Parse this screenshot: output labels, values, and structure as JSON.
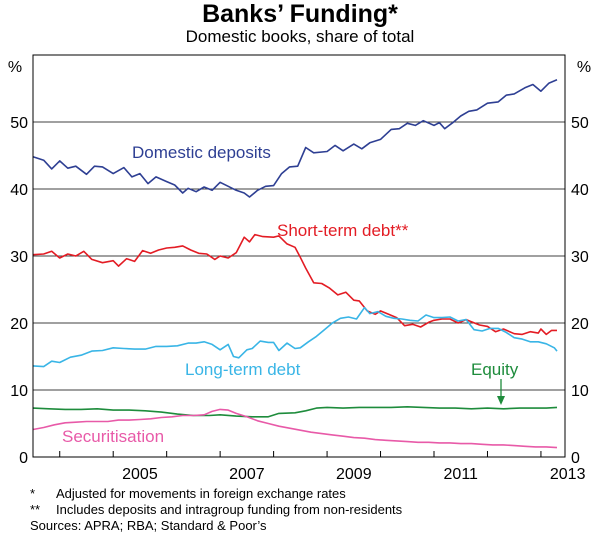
{
  "title": "Banks’ Funding*",
  "subtitle": "Domestic books, share of total",
  "notes": [
    {
      "mark": "*",
      "text": "Adjusted for movements in foreign exchange rates"
    },
    {
      "mark": "**",
      "text": "Includes deposits and intragroup funding from non-residents"
    }
  ],
  "sources": "Sources: APRA; RBA; Standard & Poor’s",
  "chart_data": {
    "type": "line",
    "title": "Banks’ Funding*",
    "subtitle": "Domestic books, share of total",
    "ylabel_left": "%",
    "ylabel_right": "%",
    "ylim": [
      0,
      60
    ],
    "xlim": [
      2003.5,
      2013.45
    ],
    "yticks": [
      0,
      10,
      20,
      30,
      40,
      50
    ],
    "xticks": [
      2005,
      2007,
      2009,
      2011,
      2013
    ],
    "xtick_labels": [
      "2005",
      "2007",
      "2009",
      "2011",
      "2013"
    ],
    "grid": "horizontal",
    "series": [
      {
        "name": "Domestic deposits",
        "label": "Domestic deposits",
        "color": "#2e3f93",
        "points": [
          [
            2003.5,
            44.8
          ],
          [
            2003.7,
            44.3
          ],
          [
            2003.85,
            43.0
          ],
          [
            2004.0,
            44.2
          ],
          [
            2004.15,
            43.1
          ],
          [
            2004.3,
            43.4
          ],
          [
            2004.5,
            42.2
          ],
          [
            2004.65,
            43.4
          ],
          [
            2004.8,
            43.3
          ],
          [
            2005.0,
            42.3
          ],
          [
            2005.2,
            43.2
          ],
          [
            2005.35,
            41.8
          ],
          [
            2005.5,
            42.3
          ],
          [
            2005.65,
            40.8
          ],
          [
            2005.8,
            41.8
          ],
          [
            2006.0,
            41.1
          ],
          [
            2006.15,
            40.6
          ],
          [
            2006.3,
            39.4
          ],
          [
            2006.4,
            40.1
          ],
          [
            2006.55,
            39.6
          ],
          [
            2006.7,
            40.3
          ],
          [
            2006.85,
            39.8
          ],
          [
            2007.0,
            41.0
          ],
          [
            2007.15,
            40.4
          ],
          [
            2007.3,
            39.8
          ],
          [
            2007.45,
            39.4
          ],
          [
            2007.55,
            38.8
          ],
          [
            2007.7,
            39.8
          ],
          [
            2007.85,
            40.4
          ],
          [
            2008.0,
            40.5
          ],
          [
            2008.15,
            42.3
          ],
          [
            2008.3,
            43.3
          ],
          [
            2008.45,
            43.4
          ],
          [
            2008.6,
            46.2
          ],
          [
            2008.75,
            45.4
          ],
          [
            2009.0,
            45.6
          ],
          [
            2009.15,
            46.5
          ],
          [
            2009.3,
            45.7
          ],
          [
            2009.5,
            46.7
          ],
          [
            2009.65,
            46.0
          ],
          [
            2009.8,
            46.9
          ],
          [
            2010.0,
            47.4
          ],
          [
            2010.2,
            48.9
          ],
          [
            2010.35,
            49.0
          ],
          [
            2010.5,
            49.8
          ],
          [
            2010.65,
            49.5
          ],
          [
            2010.8,
            50.2
          ],
          [
            2011.0,
            49.5
          ],
          [
            2011.1,
            49.9
          ],
          [
            2011.2,
            49.0
          ],
          [
            2011.35,
            49.9
          ],
          [
            2011.5,
            50.9
          ],
          [
            2011.65,
            51.6
          ],
          [
            2011.8,
            51.8
          ],
          [
            2012.0,
            52.8
          ],
          [
            2012.2,
            53.0
          ],
          [
            2012.35,
            54.0
          ],
          [
            2012.5,
            54.2
          ],
          [
            2012.7,
            55.1
          ],
          [
            2012.85,
            55.6
          ],
          [
            2013.0,
            54.6
          ],
          [
            2013.15,
            55.8
          ],
          [
            2013.3,
            56.3
          ]
        ]
      },
      {
        "name": "Short-term debt**",
        "label": "Short-term debt**",
        "color": "#e31c24",
        "points": [
          [
            2003.5,
            30.2
          ],
          [
            2003.7,
            30.3
          ],
          [
            2003.85,
            30.7
          ],
          [
            2004.0,
            29.7
          ],
          [
            2004.15,
            30.3
          ],
          [
            2004.3,
            30.0
          ],
          [
            2004.45,
            30.7
          ],
          [
            2004.6,
            29.5
          ],
          [
            2004.8,
            29.0
          ],
          [
            2005.0,
            29.3
          ],
          [
            2005.1,
            28.5
          ],
          [
            2005.25,
            29.6
          ],
          [
            2005.4,
            29.2
          ],
          [
            2005.55,
            30.8
          ],
          [
            2005.7,
            30.4
          ],
          [
            2005.85,
            30.9
          ],
          [
            2006.0,
            31.2
          ],
          [
            2006.15,
            31.3
          ],
          [
            2006.3,
            31.5
          ],
          [
            2006.45,
            30.9
          ],
          [
            2006.6,
            30.4
          ],
          [
            2006.75,
            30.3
          ],
          [
            2006.9,
            29.5
          ],
          [
            2007.0,
            30.0
          ],
          [
            2007.15,
            29.7
          ],
          [
            2007.3,
            30.5
          ],
          [
            2007.45,
            32.8
          ],
          [
            2007.55,
            32.1
          ],
          [
            2007.65,
            33.2
          ],
          [
            2007.8,
            32.9
          ],
          [
            2008.0,
            32.8
          ],
          [
            2008.1,
            33.0
          ],
          [
            2008.25,
            31.8
          ],
          [
            2008.4,
            31.3
          ],
          [
            2008.5,
            29.8
          ],
          [
            2008.6,
            28.2
          ],
          [
            2008.75,
            26.0
          ],
          [
            2008.9,
            25.9
          ],
          [
            2009.05,
            25.2
          ],
          [
            2009.2,
            24.2
          ],
          [
            2009.35,
            24.6
          ],
          [
            2009.5,
            23.4
          ],
          [
            2009.6,
            23.3
          ],
          [
            2009.75,
            21.8
          ],
          [
            2009.9,
            21.3
          ],
          [
            2010.0,
            21.8
          ],
          [
            2010.15,
            21.3
          ],
          [
            2010.3,
            20.8
          ],
          [
            2010.45,
            19.6
          ],
          [
            2010.6,
            19.8
          ],
          [
            2010.75,
            19.4
          ],
          [
            2010.9,
            20.1
          ],
          [
            2011.0,
            20.4
          ],
          [
            2011.15,
            20.6
          ],
          [
            2011.3,
            20.6
          ],
          [
            2011.45,
            20.0
          ],
          [
            2011.6,
            20.5
          ],
          [
            2011.7,
            20.2
          ],
          [
            2011.85,
            19.7
          ],
          [
            2012.0,
            19.5
          ],
          [
            2012.15,
            18.7
          ],
          [
            2012.3,
            19.1
          ],
          [
            2012.5,
            18.4
          ],
          [
            2012.65,
            18.3
          ],
          [
            2012.8,
            18.7
          ],
          [
            2012.95,
            18.5
          ],
          [
            2013.0,
            19.1
          ],
          [
            2013.1,
            18.3
          ],
          [
            2013.2,
            18.9
          ],
          [
            2013.3,
            18.9
          ]
        ]
      },
      {
        "name": "Long-term debt",
        "label": "Long-term debt",
        "color": "#39b5e6",
        "points": [
          [
            2003.5,
            13.6
          ],
          [
            2003.7,
            13.5
          ],
          [
            2003.85,
            14.3
          ],
          [
            2004.0,
            14.1
          ],
          [
            2004.2,
            14.9
          ],
          [
            2004.4,
            15.2
          ],
          [
            2004.6,
            15.8
          ],
          [
            2004.8,
            15.9
          ],
          [
            2005.0,
            16.3
          ],
          [
            2005.2,
            16.2
          ],
          [
            2005.4,
            16.1
          ],
          [
            2005.6,
            16.1
          ],
          [
            2005.8,
            16.5
          ],
          [
            2006.0,
            16.5
          ],
          [
            2006.2,
            16.6
          ],
          [
            2006.4,
            17.0
          ],
          [
            2006.55,
            17.0
          ],
          [
            2006.7,
            17.2
          ],
          [
            2006.85,
            16.8
          ],
          [
            2007.0,
            16.0
          ],
          [
            2007.15,
            16.8
          ],
          [
            2007.25,
            15.0
          ],
          [
            2007.35,
            14.8
          ],
          [
            2007.5,
            16.0
          ],
          [
            2007.6,
            16.2
          ],
          [
            2007.75,
            17.3
          ],
          [
            2007.9,
            17.1
          ],
          [
            2008.0,
            17.1
          ],
          [
            2008.1,
            15.9
          ],
          [
            2008.25,
            17.0
          ],
          [
            2008.4,
            16.2
          ],
          [
            2008.5,
            16.3
          ],
          [
            2008.65,
            17.2
          ],
          [
            2008.8,
            18.0
          ],
          [
            2008.95,
            19.0
          ],
          [
            2009.1,
            20.0
          ],
          [
            2009.25,
            20.7
          ],
          [
            2009.4,
            20.9
          ],
          [
            2009.55,
            20.6
          ],
          [
            2009.7,
            22.3
          ],
          [
            2009.8,
            21.4
          ],
          [
            2009.95,
            21.7
          ],
          [
            2010.1,
            21.0
          ],
          [
            2010.25,
            20.7
          ],
          [
            2010.4,
            20.6
          ],
          [
            2010.55,
            20.4
          ],
          [
            2010.7,
            20.3
          ],
          [
            2010.85,
            21.2
          ],
          [
            2011.0,
            20.8
          ],
          [
            2011.15,
            20.8
          ],
          [
            2011.3,
            20.9
          ],
          [
            2011.45,
            20.3
          ],
          [
            2011.6,
            20.5
          ],
          [
            2011.75,
            19.0
          ],
          [
            2011.9,
            18.8
          ],
          [
            2012.05,
            19.2
          ],
          [
            2012.2,
            19.2
          ],
          [
            2012.35,
            18.6
          ],
          [
            2012.5,
            17.8
          ],
          [
            2012.65,
            17.6
          ],
          [
            2012.8,
            17.2
          ],
          [
            2012.95,
            17.2
          ],
          [
            2013.1,
            16.9
          ],
          [
            2013.25,
            16.3
          ],
          [
            2013.3,
            15.8
          ]
        ]
      },
      {
        "name": "Equity",
        "label": "Equity",
        "color": "#1e8c3c",
        "points": [
          [
            2003.5,
            7.3
          ],
          [
            2003.8,
            7.2
          ],
          [
            2004.1,
            7.1
          ],
          [
            2004.4,
            7.1
          ],
          [
            2004.7,
            7.2
          ],
          [
            2005.0,
            7.0
          ],
          [
            2005.3,
            7.0
          ],
          [
            2005.6,
            6.9
          ],
          [
            2005.9,
            6.7
          ],
          [
            2006.2,
            6.4
          ],
          [
            2006.5,
            6.2
          ],
          [
            2006.8,
            6.2
          ],
          [
            2007.0,
            6.3
          ],
          [
            2007.3,
            6.1
          ],
          [
            2007.6,
            6.0
          ],
          [
            2007.9,
            6.0
          ],
          [
            2008.1,
            6.5
          ],
          [
            2008.4,
            6.6
          ],
          [
            2008.6,
            6.9
          ],
          [
            2008.8,
            7.3
          ],
          [
            2009.0,
            7.4
          ],
          [
            2009.3,
            7.3
          ],
          [
            2009.6,
            7.4
          ],
          [
            2009.9,
            7.4
          ],
          [
            2010.2,
            7.4
          ],
          [
            2010.5,
            7.5
          ],
          [
            2010.8,
            7.4
          ],
          [
            2011.1,
            7.3
          ],
          [
            2011.4,
            7.3
          ],
          [
            2011.7,
            7.2
          ],
          [
            2012.0,
            7.3
          ],
          [
            2012.3,
            7.2
          ],
          [
            2012.6,
            7.3
          ],
          [
            2012.9,
            7.3
          ],
          [
            2013.1,
            7.3
          ],
          [
            2013.3,
            7.4
          ]
        ]
      },
      {
        "name": "Securitisation",
        "label": "Securitisation",
        "color": "#e85aa8",
        "points": [
          [
            2003.5,
            4.1
          ],
          [
            2003.7,
            4.4
          ],
          [
            2003.9,
            4.8
          ],
          [
            2004.1,
            5.1
          ],
          [
            2004.3,
            5.2
          ],
          [
            2004.5,
            5.3
          ],
          [
            2004.7,
            5.3
          ],
          [
            2004.9,
            5.3
          ],
          [
            2005.1,
            5.5
          ],
          [
            2005.3,
            5.5
          ],
          [
            2005.5,
            5.6
          ],
          [
            2005.7,
            5.7
          ],
          [
            2005.9,
            5.9
          ],
          [
            2006.1,
            6.0
          ],
          [
            2006.3,
            6.2
          ],
          [
            2006.5,
            6.2
          ],
          [
            2006.7,
            6.3
          ],
          [
            2006.85,
            6.8
          ],
          [
            2007.0,
            7.1
          ],
          [
            2007.15,
            7.0
          ],
          [
            2007.3,
            6.5
          ],
          [
            2007.5,
            6.0
          ],
          [
            2007.7,
            5.4
          ],
          [
            2007.9,
            5.0
          ],
          [
            2008.1,
            4.6
          ],
          [
            2008.3,
            4.3
          ],
          [
            2008.5,
            4.0
          ],
          [
            2008.7,
            3.7
          ],
          [
            2008.9,
            3.5
          ],
          [
            2009.1,
            3.3
          ],
          [
            2009.3,
            3.1
          ],
          [
            2009.5,
            2.9
          ],
          [
            2009.7,
            2.8
          ],
          [
            2009.9,
            2.6
          ],
          [
            2010.1,
            2.5
          ],
          [
            2010.3,
            2.4
          ],
          [
            2010.5,
            2.3
          ],
          [
            2010.7,
            2.2
          ],
          [
            2010.9,
            2.2
          ],
          [
            2011.1,
            2.1
          ],
          [
            2011.3,
            2.1
          ],
          [
            2011.5,
            2.0
          ],
          [
            2011.7,
            2.0
          ],
          [
            2011.9,
            1.9
          ],
          [
            2012.1,
            1.8
          ],
          [
            2012.3,
            1.8
          ],
          [
            2012.5,
            1.7
          ],
          [
            2012.7,
            1.6
          ],
          [
            2012.9,
            1.5
          ],
          [
            2013.1,
            1.5
          ],
          [
            2013.3,
            1.4
          ]
        ]
      }
    ]
  }
}
